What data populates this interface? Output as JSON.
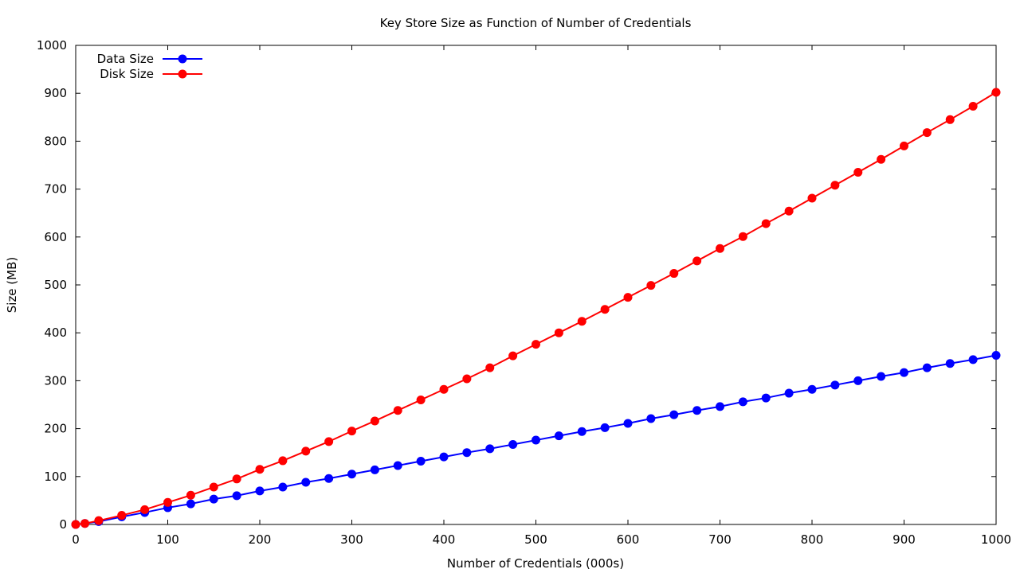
{
  "chart_data": {
    "type": "line",
    "title": "Key Store Size as Function of Number of Credentials",
    "xlabel": "Number of Credentials (000s)",
    "ylabel": "Size (MB)",
    "xlim": [
      0,
      1000
    ],
    "ylim": [
      0,
      1000
    ],
    "x_ticks": [
      0,
      100,
      200,
      300,
      400,
      500,
      600,
      700,
      800,
      900,
      1000
    ],
    "y_ticks": [
      0,
      100,
      200,
      300,
      400,
      500,
      600,
      700,
      800,
      900,
      1000
    ],
    "grid": false,
    "legend_position": "top-left",
    "x": [
      0,
      10,
      25,
      50,
      75,
      100,
      125,
      150,
      175,
      200,
      225,
      250,
      275,
      300,
      325,
      350,
      375,
      400,
      425,
      450,
      475,
      500,
      525,
      550,
      575,
      600,
      625,
      650,
      675,
      700,
      725,
      750,
      775,
      800,
      825,
      850,
      875,
      900,
      925,
      950,
      975,
      1000
    ],
    "series": [
      {
        "name": "Data Size",
        "color": "#0000ff",
        "values": [
          0,
          2,
          6,
          16,
          25,
          35,
          43,
          53,
          60,
          70,
          78,
          88,
          96,
          105,
          114,
          123,
          132,
          141,
          150,
          158,
          167,
          176,
          185,
          194,
          202,
          211,
          221,
          229,
          238,
          246,
          256,
          264,
          274,
          282,
          291,
          300,
          309,
          317,
          327,
          336,
          344,
          353
        ]
      },
      {
        "name": "Disk Size",
        "color": "#ff0000",
        "values": [
          0,
          2,
          8,
          19,
          31,
          46,
          61,
          78,
          95,
          115,
          133,
          153,
          173,
          195,
          216,
          238,
          260,
          282,
          304,
          327,
          352,
          376,
          400,
          424,
          449,
          474,
          499,
          524,
          550,
          576,
          601,
          628,
          654,
          681,
          708,
          735,
          762,
          790,
          818,
          845,
          873,
          902
        ]
      }
    ]
  }
}
